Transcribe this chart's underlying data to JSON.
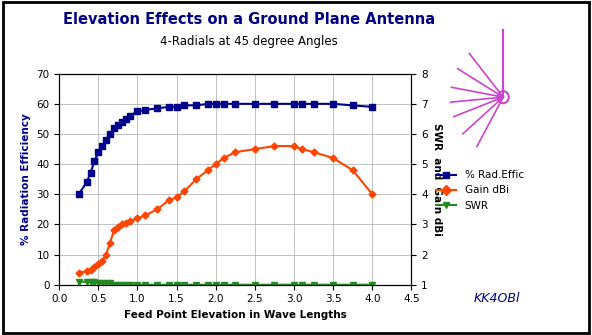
{
  "title": "Elevation Effects on a Ground Plane Antenna",
  "subtitle": "4-Radials at 45 degree Angles",
  "xlabel": "Feed Point Elevation in Wave Lengths",
  "ylabel_left": "% Radiation Efficiency",
  "ylabel_right": "SWR  and  Gain dBi",
  "watermark": "KK4OBl",
  "x": [
    0.25,
    0.35,
    0.4,
    0.45,
    0.5,
    0.55,
    0.6,
    0.65,
    0.7,
    0.75,
    0.8,
    0.85,
    0.9,
    1.0,
    1.1,
    1.25,
    1.4,
    1.5,
    1.6,
    1.75,
    1.9,
    2.0,
    2.1,
    2.25,
    2.5,
    2.75,
    3.0,
    3.1,
    3.25,
    3.5,
    3.75,
    4.0
  ],
  "rad_effic": [
    30,
    34,
    37,
    41,
    44,
    46,
    48,
    50,
    52,
    53,
    54,
    55,
    56,
    57.5,
    58,
    58.5,
    59,
    59,
    59.5,
    59.5,
    60,
    60,
    60,
    60,
    60,
    60,
    60,
    60,
    60,
    60,
    59.5,
    59
  ],
  "gain_dbi": [
    4,
    4.5,
    5,
    6,
    7,
    8,
    10,
    14,
    18,
    19,
    20,
    20.5,
    21,
    22,
    23,
    25,
    28,
    29,
    31,
    35,
    38,
    40,
    42,
    44,
    45,
    46,
    46,
    45,
    44,
    42,
    38,
    30
  ],
  "swr": [
    1.1,
    1.1,
    1.1,
    1.1,
    1.05,
    1.05,
    1.05,
    1.05,
    1.0,
    1.0,
    1.0,
    1.0,
    1.0,
    1.0,
    1.0,
    1.0,
    1.0,
    1.0,
    1.0,
    1.0,
    1.0,
    1.0,
    1.0,
    1.0,
    1.0,
    1.0,
    1.0,
    1.0,
    1.0,
    1.0,
    1.0,
    1.0
  ],
  "rad_effic_color": "#00008B",
  "gain_color": "#FF4500",
  "swr_color": "#228B22",
  "xlim": [
    0,
    4.5
  ],
  "ylim_left": [
    0,
    70
  ],
  "ylim_right": [
    1,
    8
  ],
  "xticks": [
    0,
    0.5,
    1.0,
    1.5,
    2.0,
    2.5,
    3.0,
    3.5,
    4.0,
    4.5
  ],
  "yticks_left": [
    0,
    10,
    20,
    30,
    40,
    50,
    60,
    70
  ],
  "yticks_right": [
    1,
    2,
    3,
    4,
    5,
    6,
    7,
    8
  ],
  "background_color": "#FFFFFF",
  "grid_color": "#AAAAAA",
  "title_color": "#000080",
  "antenna_color": "#CC44CC",
  "border_color": "#000000"
}
